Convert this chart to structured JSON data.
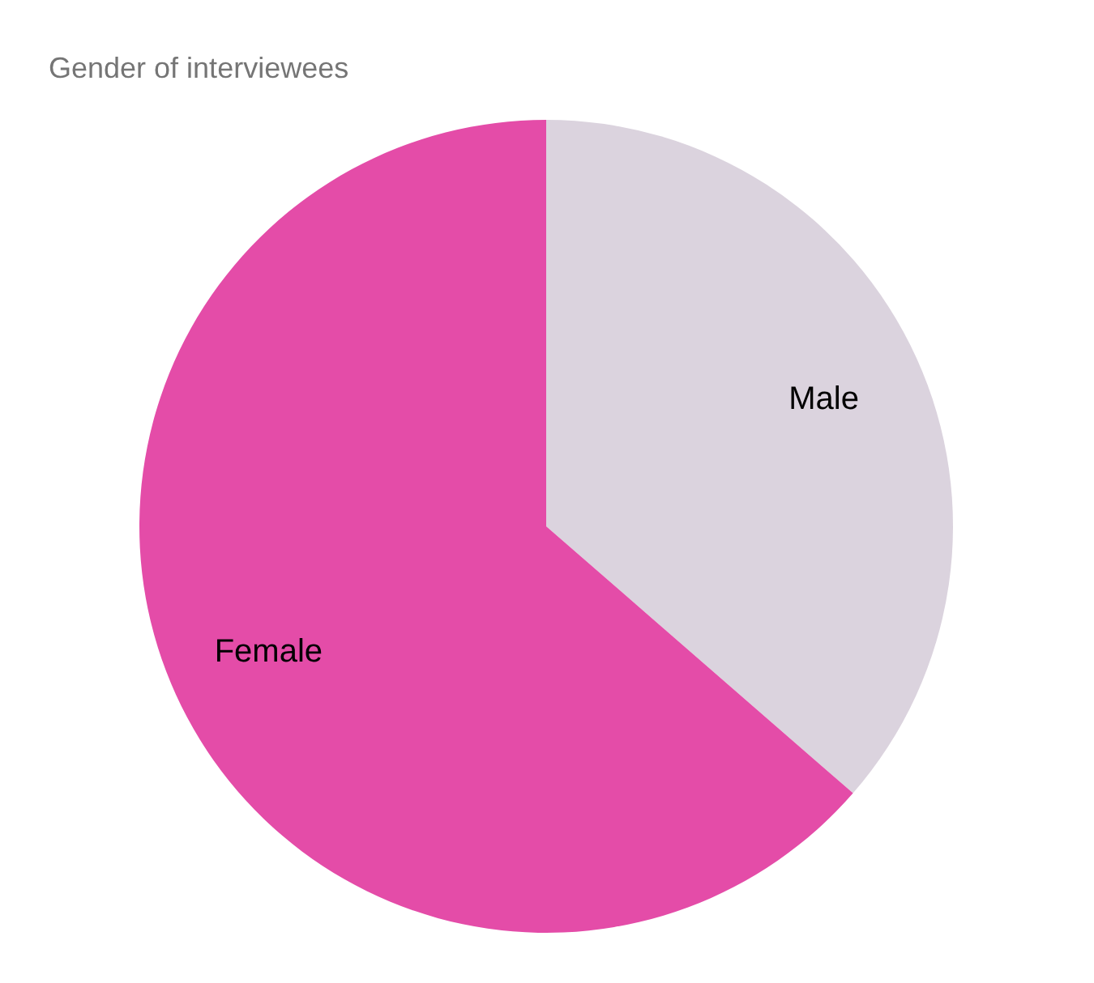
{
  "chart_data": {
    "type": "pie",
    "title": "Gender of interviewees",
    "categories": [
      "Male",
      "Female"
    ],
    "values": [
      36.4,
      63.6
    ],
    "colors": [
      "#dbd3de",
      "#e44ca8"
    ]
  }
}
